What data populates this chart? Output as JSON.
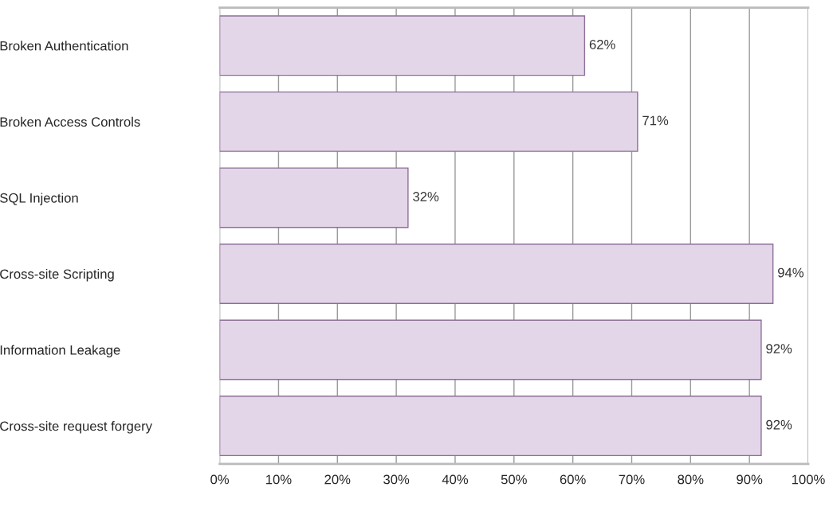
{
  "chart_data": {
    "type": "bar",
    "orientation": "horizontal",
    "categories": [
      "Broken Authentication",
      "Broken Access Controls",
      "SQL Injection",
      "Cross-site Scripting",
      "Information Leakage",
      "Cross-site request forgery"
    ],
    "values": [
      62,
      71,
      32,
      94,
      92,
      92
    ],
    "color": "#e4d6e9",
    "xlim": [
      0,
      100
    ],
    "xticks": [
      {
        "value": 0,
        "label": "0%"
      },
      {
        "value": 10,
        "label": "10%"
      },
      {
        "value": 20,
        "label": "20%"
      },
      {
        "value": 30,
        "label": "30%"
      },
      {
        "value": 40,
        "label": "40%"
      },
      {
        "value": 50,
        "label": "50%"
      },
      {
        "value": 60,
        "label": "60%"
      },
      {
        "value": 70,
        "label": "70%"
      },
      {
        "value": 80,
        "label": "80%"
      },
      {
        "value": 90,
        "label": "90%"
      },
      {
        "value": 100,
        "label": "100%"
      }
    ],
    "value_labels": [
      "62%",
      "71%",
      "32%",
      "94%",
      "92%",
      "92%"
    ],
    "grid": "x"
  }
}
